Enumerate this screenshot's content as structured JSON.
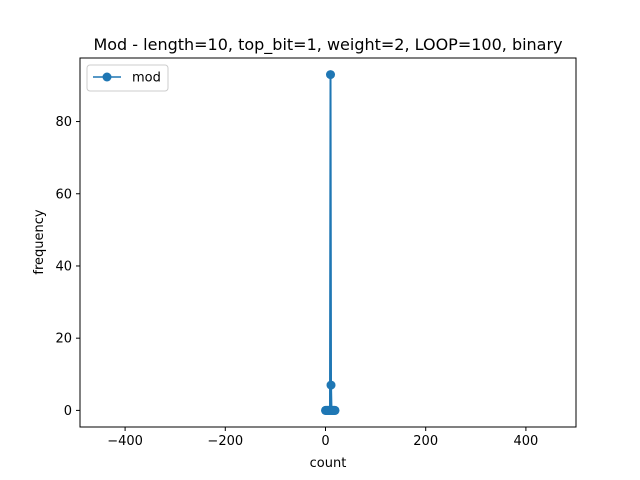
{
  "chart_data": {
    "type": "line",
    "title": "Mod - length=10, top_bit=1, weight=2, LOOP=100, binary",
    "xlabel": "count",
    "ylabel": "frequency",
    "xlim": [
      -490,
      500
    ],
    "ylim": [
      -4.6,
      97.6
    ],
    "xticks": [
      -400,
      -200,
      0,
      200,
      400
    ],
    "yticks": [
      0,
      20,
      40,
      60,
      80
    ],
    "xtick_labels": [
      "−400",
      "−200",
      "0",
      "200",
      "400"
    ],
    "ytick_labels": [
      "0",
      "20",
      "40",
      "60",
      "80"
    ],
    "grid": false,
    "legend_position": "top-left",
    "series": [
      {
        "name": "mod",
        "color": "#1f77b4",
        "marker": "circle",
        "points": [
          [
            0,
            0
          ],
          [
            1,
            0
          ],
          [
            2,
            0
          ],
          [
            3,
            0
          ],
          [
            4,
            0
          ],
          [
            5,
            0
          ],
          [
            6,
            0
          ],
          [
            7,
            0
          ],
          [
            8,
            0
          ],
          [
            9,
            0
          ],
          [
            10,
            93
          ],
          [
            11,
            7
          ],
          [
            12,
            0
          ],
          [
            13,
            0
          ],
          [
            14,
            0
          ],
          [
            15,
            0
          ],
          [
            16,
            0
          ],
          [
            17,
            0
          ],
          [
            18,
            0
          ],
          [
            19,
            0
          ]
        ]
      }
    ]
  }
}
